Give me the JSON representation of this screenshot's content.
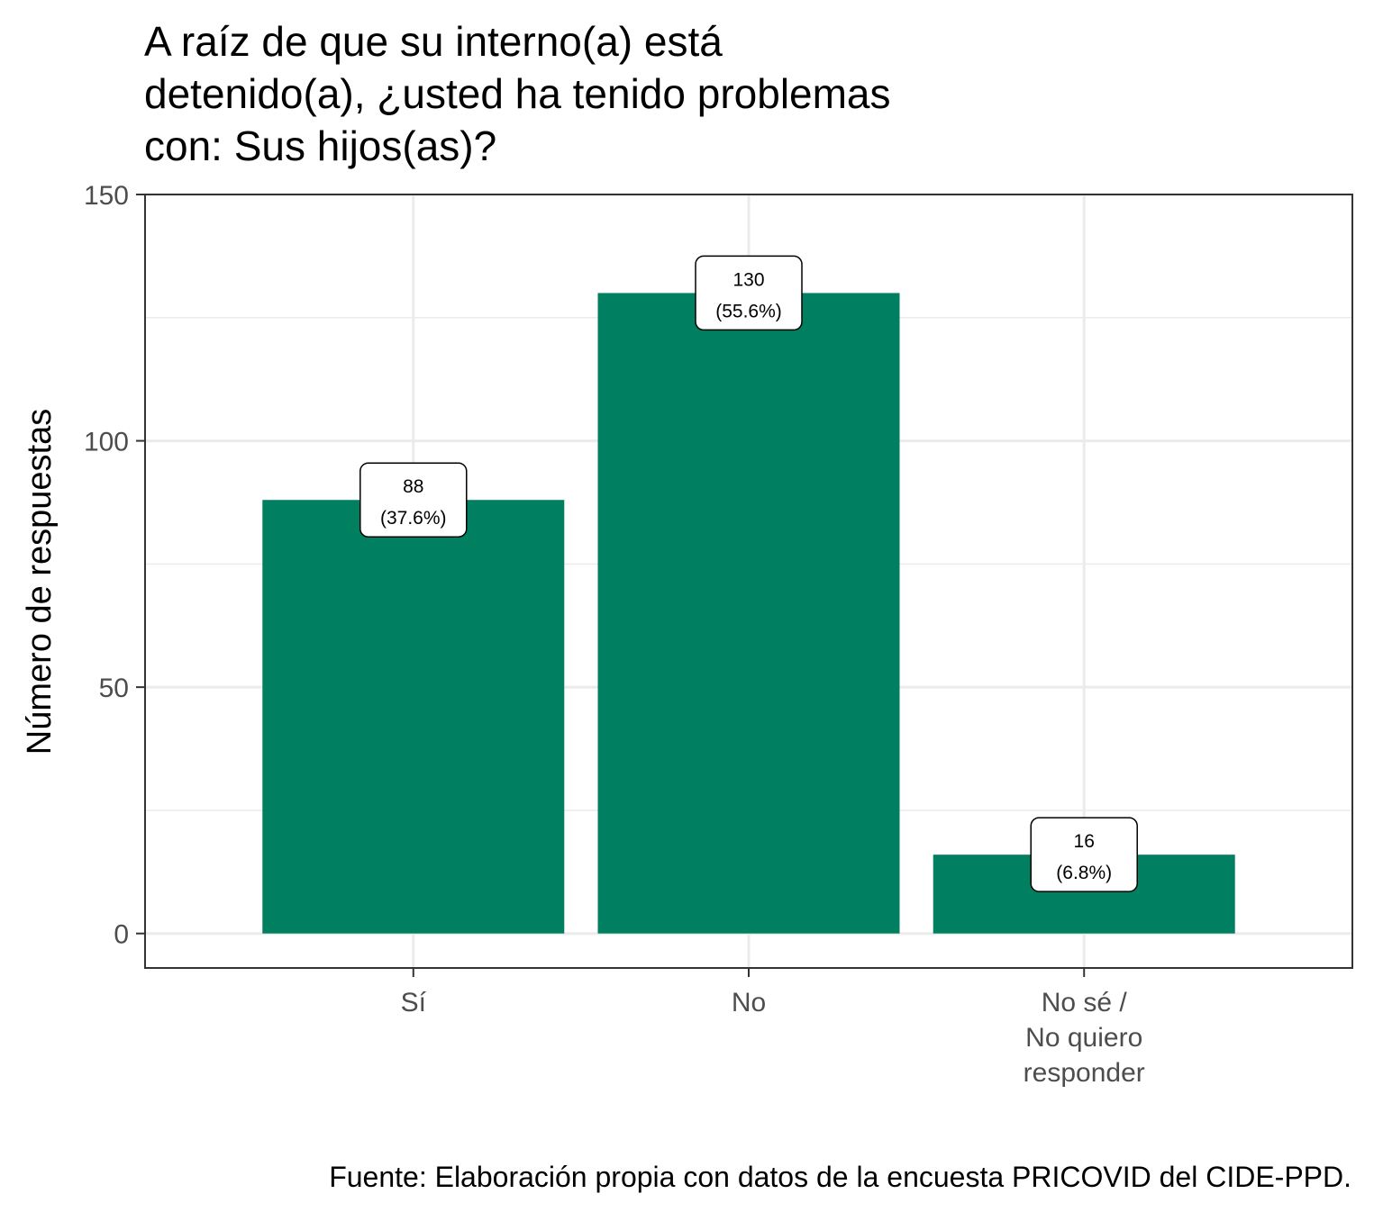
{
  "chart_data": {
    "type": "bar",
    "title": "A raíz de que su interno(a) está\ndetenido(a), ¿usted ha tenido problemas\ncon: Sus hijos(as)?",
    "xlabel": "",
    "ylabel": "Número de respuestas",
    "categories": [
      "Sí",
      "No",
      "No sé /\nNo quiero\nresponder"
    ],
    "values": [
      88,
      130,
      16
    ],
    "labels": [
      {
        "count": "88",
        "percent": "(37.6%)"
      },
      {
        "count": "130",
        "percent": "(55.6%)"
      },
      {
        "count": "16",
        "percent": "(6.8%)"
      }
    ],
    "ylim": [
      -7,
      150
    ],
    "yticks": [
      0,
      50,
      100,
      150
    ],
    "grid": true,
    "legend": "none",
    "bar_color": "#008060",
    "caption": "Fuente: Elaboración propia con datos de la encuesta PRICOVID del CIDE-PPD."
  }
}
